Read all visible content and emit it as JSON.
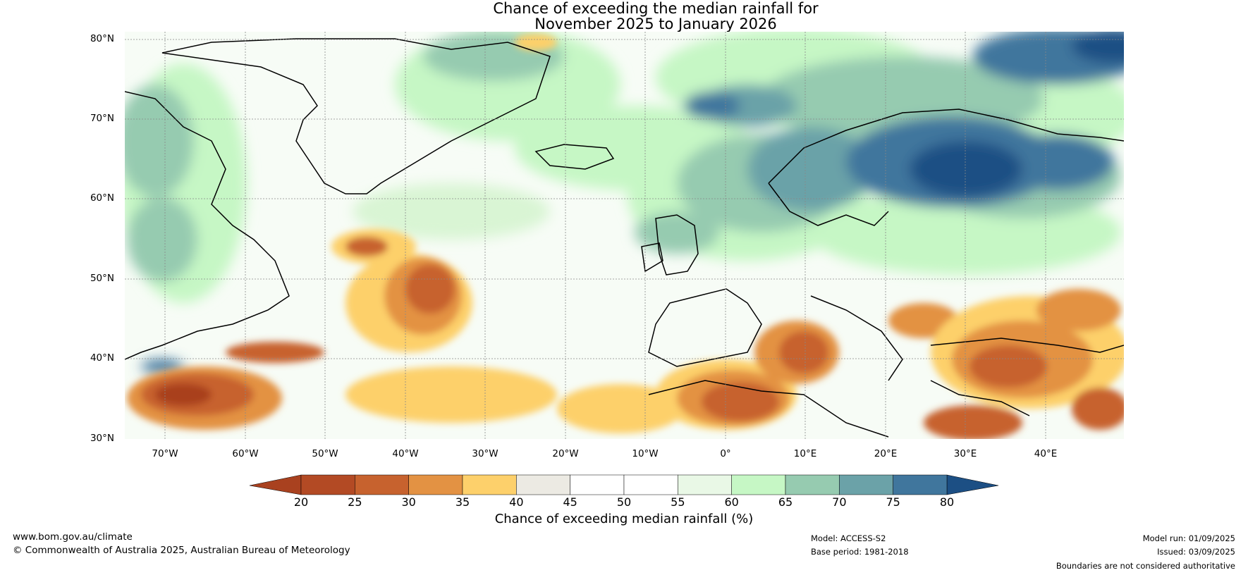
{
  "title": {
    "line1": "Chance of exceeding the median rainfall for",
    "line2": "November 2025 to January 2026"
  },
  "lat_labels": [
    "80°N",
    "70°N",
    "60°N",
    "50°N",
    "40°N",
    "30°N"
  ],
  "lon_labels": [
    "70°W",
    "60°W",
    "50°W",
    "40°W",
    "30°W",
    "20°W",
    "10°W",
    "0°",
    "10°E",
    "20°E",
    "30°E",
    "40°E"
  ],
  "colorbar": {
    "ticks": [
      "20",
      "25",
      "30",
      "35",
      "40",
      "45",
      "50",
      "55",
      "60",
      "65",
      "70",
      "75",
      "80"
    ],
    "colors": [
      "#a9411f",
      "#b34a24",
      "#c7622e",
      "#e39243",
      "#fdd06b",
      "#eceae3",
      "#ffffff",
      "#ffffff",
      "#e9f8e6",
      "#c6f7c5",
      "#96cbb0",
      "#6ba2a8",
      "#40769d",
      "#1c4f84"
    ],
    "label": "Chance of exceeding median rainfall (%)"
  },
  "footer": {
    "website": "www.bom.gov.au/climate",
    "copyright": "© Commonwealth of Australia 2025, Australian Bureau of Meteorology",
    "model": "Model: ACCESS-S2",
    "base_period": "Base period: 1981-2018",
    "model_run": "Model run: 01/09/2025",
    "issued": "Issued: 03/09/2025",
    "disclaimer": "Boundaries are not considered authoritative"
  }
}
